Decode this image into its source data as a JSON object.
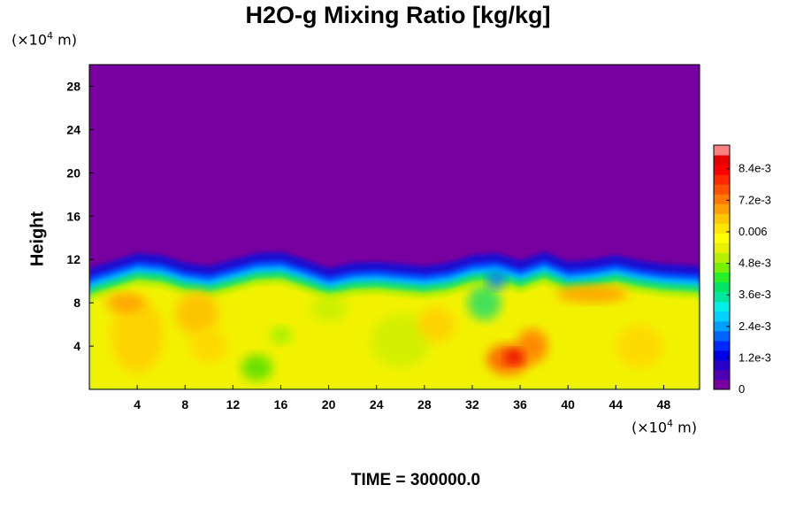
{
  "chart_data": {
    "type": "heatmap",
    "title": "H2O-g Mixing Ratio [kg/kg]",
    "ylabel": "Height",
    "x_unit_prefix": "(×10",
    "x_unit_exp": "4",
    "x_unit_suffix": " m)",
    "y_unit_prefix": "(×10",
    "y_unit_exp": "4",
    "y_unit_suffix": " m)",
    "xlim": [
      0,
      51
    ],
    "ylim": [
      0,
      30
    ],
    "x_ticks": [
      "4",
      "8",
      "12",
      "16",
      "20",
      "24",
      "28",
      "32",
      "36",
      "40",
      "44",
      "48"
    ],
    "y_ticks": [
      "4",
      "8",
      "12",
      "16",
      "20",
      "24",
      "28"
    ],
    "x_tick_values": [
      4,
      8,
      12,
      16,
      20,
      24,
      28,
      32,
      36,
      40,
      44,
      48
    ],
    "y_tick_values": [
      4,
      8,
      12,
      16,
      20,
      24,
      28
    ],
    "colorbar": {
      "range": [
        0,
        0.0093
      ],
      "tick_labels": [
        "0",
        "1.2e-3",
        "2.4e-3",
        "3.6e-3",
        "4.8e-3",
        "0.006",
        "7.2e-3",
        "8.4e-3"
      ],
      "tick_values": [
        0,
        0.0012,
        0.0024,
        0.0036,
        0.0048,
        0.006,
        0.0072,
        0.0084
      ],
      "colors": [
        "#7800a0",
        "#5000b4",
        "#2800c8",
        "#0000e6",
        "#0028ff",
        "#0064ff",
        "#00a0ff",
        "#00d2ff",
        "#00f0e6",
        "#00e6a0",
        "#00e664",
        "#28f028",
        "#78f000",
        "#b4f000",
        "#e6f000",
        "#ffff00",
        "#ffe600",
        "#ffc800",
        "#ffa000",
        "#ff7800",
        "#ff5000",
        "#ff2800",
        "#ff0000",
        "#e60000",
        "#ff8080"
      ]
    },
    "field_notes": {
      "upper_region_value": 0,
      "lower_region_value_approx": 0.0062,
      "interface_height_approx": 10.5
    },
    "time_label": "TIME = 300000.0"
  }
}
